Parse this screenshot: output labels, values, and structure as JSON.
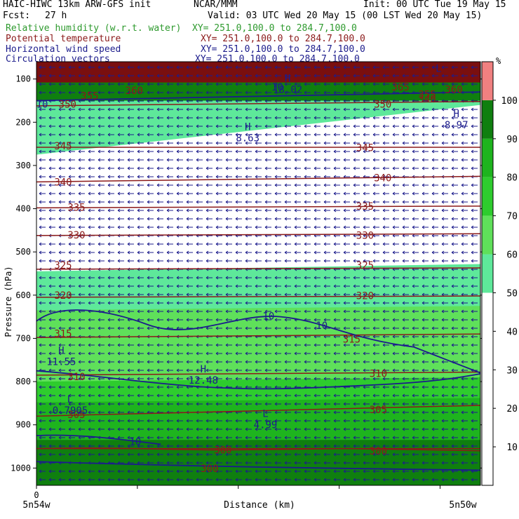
{
  "header": {
    "model_title": "HAIC-HIWC 13km ARW-GFS init",
    "center": "NCAR/MMM",
    "init": "Init: 00 UTC Tue 19 May 15",
    "fcst_label": "Fcst:",
    "fcst_value": "27 h",
    "valid": "Valid: 03 UTC Wed 20 May 15 (00 LST Wed 20 May 15)",
    "fields": [
      {
        "name": "Relative humidity (w.r.t. water)",
        "xy": "XY= 251.0,100.0 to 284.7,100.0",
        "color": "#2e9a2e"
      },
      {
        "name": "Potential temperature",
        "xy": "XY= 251.0,100.0 to 284.7,100.0",
        "color": "#8b1a1a"
      },
      {
        "name": "Horizontal wind speed",
        "xy": "XY= 251.0,100.0 to 284.7,100.0",
        "color": "#1c1c8c"
      },
      {
        "name": "Circulation vectors",
        "xy": "XY= 251.0,100.0 to 284.7,100.0",
        "color": "#1c1c8c"
      }
    ]
  },
  "chart_data": {
    "type": "heatmap",
    "ylabel": "Pressure (hPa)",
    "xlabel": "Distance (km)",
    "x_tick_zero": "0",
    "x_end_labels": [
      "5n54w",
      "5n50w"
    ],
    "y_ticks": [
      100,
      200,
      300,
      400,
      500,
      600,
      700,
      800,
      900,
      1000
    ],
    "ylim": [
      1040,
      60
    ],
    "colorbar": {
      "unit": "%",
      "levels": [
        10,
        20,
        30,
        40,
        50,
        60,
        70,
        80,
        90,
        100
      ],
      "bands": [
        {
          "from": 0,
          "to": 50,
          "color": "#ffffff"
        },
        {
          "from": 50,
          "to": 60,
          "color": "#5ee89a"
        },
        {
          "from": 60,
          "to": 70,
          "color": "#5fe05a"
        },
        {
          "from": 70,
          "to": 80,
          "color": "#2ecc2e"
        },
        {
          "from": 80,
          "to": 90,
          "color": "#1eb41e"
        },
        {
          "from": 90,
          "to": 100,
          "color": "#0f7f0f"
        },
        {
          "from": 100,
          "to": 110,
          "color": "#f08080"
        }
      ]
    },
    "theta_contours": [
      {
        "value": 300,
        "p": [
          955,
          955
        ]
      },
      {
        "value": 305,
        "p": [
          880,
          855
        ]
      },
      {
        "value": 310,
        "p": [
          785,
          778
        ]
      },
      {
        "value": 315,
        "p": [
          698,
          690
        ]
      },
      {
        "value": 320,
        "p": [
          605,
          602
        ]
      },
      {
        "value": 325,
        "p": [
          540,
          537
        ]
      },
      {
        "value": 330,
        "p": [
          462,
          458
        ]
      },
      {
        "value": 335,
        "p": [
          398,
          394
        ]
      },
      {
        "value": 340,
        "p": [
          338,
          325
        ]
      },
      {
        "value": 345,
        "p": [
          258,
          258
        ]
      },
      {
        "value": 350,
        "p": [
          162,
          152
        ]
      }
    ],
    "theta_labels": [
      {
        "text": "300",
        "x": 0.42,
        "p": 960
      },
      {
        "text": "300",
        "x": 0.77,
        "p": 962
      },
      {
        "text": "300",
        "x": 0.39,
        "p": 1003
      },
      {
        "text": "305",
        "x": 0.09,
        "p": 878
      },
      {
        "text": "305",
        "x": 0.77,
        "p": 866
      },
      {
        "text": "310",
        "x": 0.09,
        "p": 790
      },
      {
        "text": "310",
        "x": 0.77,
        "p": 783
      },
      {
        "text": "315",
        "x": 0.06,
        "p": 690
      },
      {
        "text": "315",
        "x": 0.71,
        "p": 703
      },
      {
        "text": "320",
        "x": 0.06,
        "p": 602
      },
      {
        "text": "320",
        "x": 0.74,
        "p": 603
      },
      {
        "text": "325",
        "x": 0.06,
        "p": 532
      },
      {
        "text": "325",
        "x": 0.74,
        "p": 532
      },
      {
        "text": "330",
        "x": 0.09,
        "p": 462
      },
      {
        "text": "330",
        "x": 0.74,
        "p": 463
      },
      {
        "text": "335",
        "x": 0.09,
        "p": 398
      },
      {
        "text": "335",
        "x": 0.74,
        "p": 396
      },
      {
        "text": "340",
        "x": 0.06,
        "p": 340
      },
      {
        "text": "340",
        "x": 0.78,
        "p": 330
      },
      {
        "text": "345",
        "x": 0.06,
        "p": 256
      },
      {
        "text": "345",
        "x": 0.74,
        "p": 260
      },
      {
        "text": "350",
        "x": 0.07,
        "p": 160
      },
      {
        "text": "350",
        "x": 0.78,
        "p": 160
      },
      {
        "text": "355",
        "x": 0.12,
        "p": 140
      },
      {
        "text": "360",
        "x": 0.22,
        "p": 128
      },
      {
        "text": "355",
        "x": 0.88,
        "p": 137
      },
      {
        "text": "360",
        "x": 0.94,
        "p": 126
      },
      {
        "text": "365",
        "x": 0.82,
        "p": 120
      },
      {
        "text": "340",
        "x": 0.88,
        "p": 148
      }
    ],
    "wind_speed_labels": [
      {
        "text": "10",
        "x": 0.51,
        "p": 650
      },
      {
        "text": "10",
        "x": 0.63,
        "p": 672
      },
      {
        "text": "10",
        "x": 0.21,
        "p": 940
      },
      {
        "text": "10",
        "x": 0.0,
        "p": 160
      },
      {
        "text": "10",
        "x": 0.53,
        "p": 120
      }
    ],
    "extrema": [
      {
        "type": "H",
        "value": "8.63",
        "x": 0.46,
        "p": 225
      },
      {
        "type": "H",
        "value": "8.97",
        "x": 0.93,
        "p": 195
      },
      {
        "type": "H",
        "value": "11.55",
        "x": 0.04,
        "p": 742
      },
      {
        "type": "H",
        "value": "12.48",
        "x": 0.36,
        "p": 785
      },
      {
        "type": "L",
        "value": "0.7905",
        "x": 0.06,
        "p": 855
      },
      {
        "type": "L",
        "value": "4.99",
        "x": 0.5,
        "p": 888
      },
      {
        "type": "H",
        "value": "18.02",
        "x": 0.55,
        "p": 113
      },
      {
        "type": "L",
        "value": "",
        "x": 0.89,
        "p": 90
      }
    ],
    "vectors_direction": "westward"
  }
}
